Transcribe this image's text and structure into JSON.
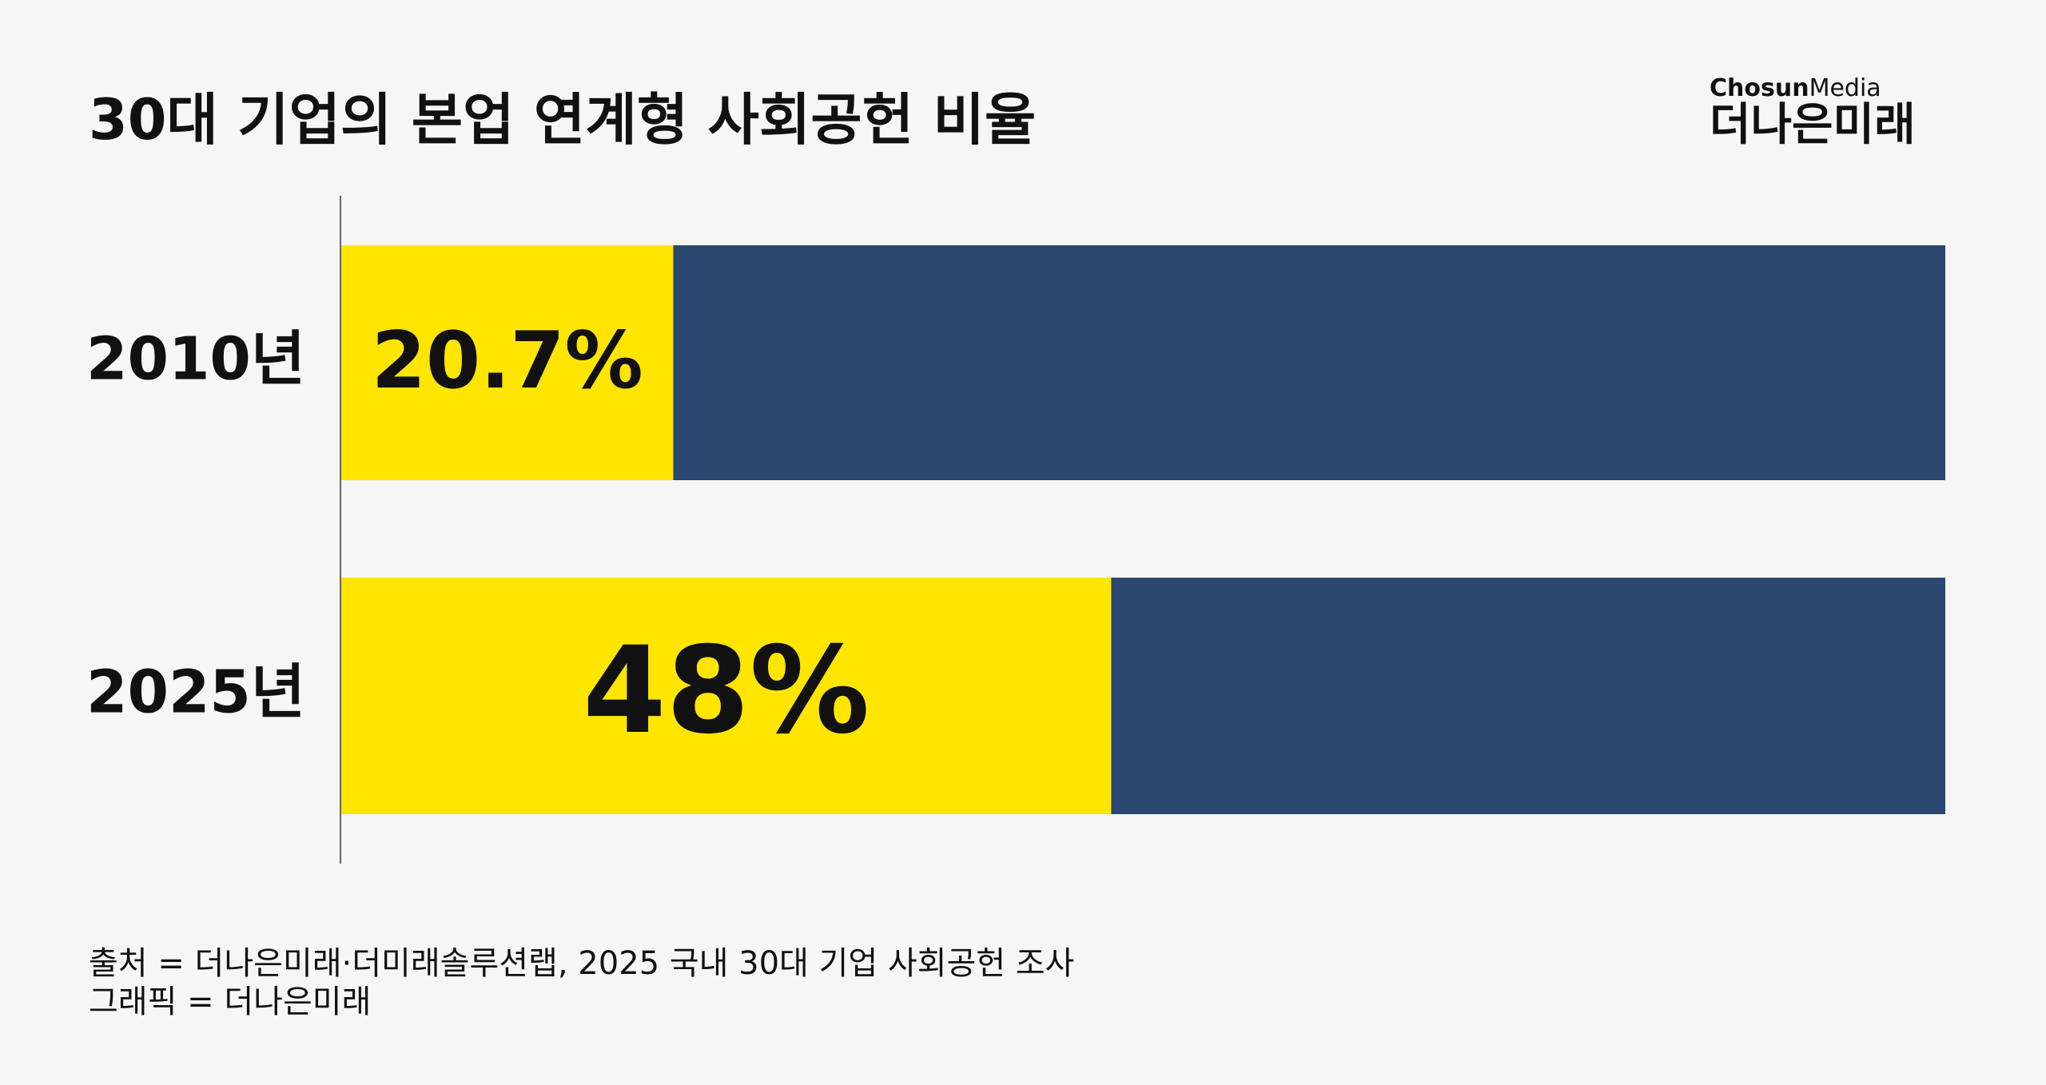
{
  "chart_data": {
    "type": "bar",
    "orientation": "horizontal",
    "title": "30대 기업의 본업 연계형 사회공헌 비율",
    "categories": [
      "2010년",
      "2025년"
    ],
    "values": [
      20.7,
      48
    ],
    "value_labels": [
      "20.7%",
      "48%"
    ],
    "color": "#ffe500",
    "track_color": "#2c4870",
    "xlim": [
      0,
      100
    ]
  },
  "brand": {
    "publisher_bold": "Chosun",
    "publisher_light": "Media",
    "name": "더나은미래"
  },
  "footer": {
    "source": "출처 = 더나은미래·더미래솔루션랩, 2025 국내 30대 기업 사회공헌 조사",
    "credit": "그래픽 = 더나은미래"
  }
}
